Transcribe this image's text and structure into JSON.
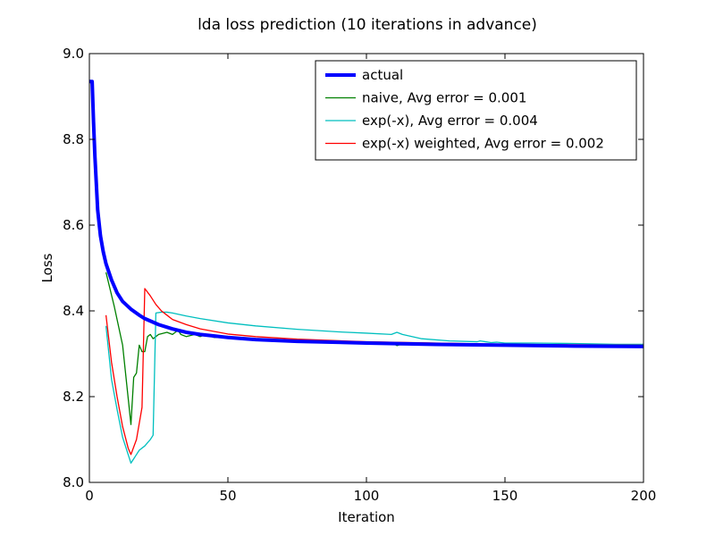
{
  "chart_data": {
    "type": "line",
    "title": "lda loss prediction (10 iterations in advance)",
    "xlabel": "Iteration",
    "ylabel": "Loss",
    "xlim": [
      0,
      200
    ],
    "ylim": [
      8.0,
      9.0
    ],
    "xticks": [
      0,
      50,
      100,
      150,
      200
    ],
    "yticks": [
      8.0,
      8.2,
      8.4,
      8.6,
      8.8,
      9.0
    ],
    "ytick_labels": [
      "8.0",
      "8.2",
      "8.4",
      "8.6",
      "8.8",
      "9.0"
    ],
    "grid": false,
    "legend_position": "top-right",
    "series": [
      {
        "name": "actual",
        "color": "#0000ff",
        "points": [
          [
            0,
            8.935
          ],
          [
            1,
            8.935
          ],
          [
            1.5,
            8.84
          ],
          [
            2,
            8.76
          ],
          [
            3,
            8.635
          ],
          [
            4,
            8.575
          ],
          [
            5,
            8.538
          ],
          [
            6,
            8.51
          ],
          [
            8,
            8.472
          ],
          [
            10,
            8.442
          ],
          [
            12,
            8.422
          ],
          [
            15,
            8.404
          ],
          [
            18,
            8.39
          ],
          [
            20,
            8.382
          ],
          [
            25,
            8.368
          ],
          [
            30,
            8.358
          ],
          [
            35,
            8.35
          ],
          [
            40,
            8.345
          ],
          [
            50,
            8.338
          ],
          [
            60,
            8.333
          ],
          [
            75,
            8.329
          ],
          [
            100,
            8.325
          ],
          [
            125,
            8.322
          ],
          [
            150,
            8.32
          ],
          [
            175,
            8.318
          ],
          [
            200,
            8.317
          ]
        ]
      },
      {
        "name": "naive, Avg error = 0.001",
        "color": "#008000",
        "points": [
          [
            6,
            8.49
          ],
          [
            9,
            8.41
          ],
          [
            12,
            8.32
          ],
          [
            15,
            8.135
          ],
          [
            16,
            8.245
          ],
          [
            17,
            8.255
          ],
          [
            18,
            8.32
          ],
          [
            19,
            8.305
          ],
          [
            20,
            8.305
          ],
          [
            21,
            8.34
          ],
          [
            22,
            8.345
          ],
          [
            23,
            8.335
          ],
          [
            25,
            8.345
          ],
          [
            28,
            8.35
          ],
          [
            30,
            8.345
          ],
          [
            32,
            8.355
          ],
          [
            33,
            8.345
          ],
          [
            35,
            8.34
          ],
          [
            38,
            8.345
          ],
          [
            40,
            8.34
          ],
          [
            42,
            8.345
          ],
          [
            45,
            8.338
          ],
          [
            50,
            8.338
          ],
          [
            60,
            8.333
          ],
          [
            75,
            8.329
          ],
          [
            100,
            8.325
          ],
          [
            110,
            8.323
          ],
          [
            111,
            8.319
          ],
          [
            112,
            8.321
          ],
          [
            125,
            8.322
          ],
          [
            150,
            8.32
          ],
          [
            175,
            8.318
          ],
          [
            200,
            8.317
          ]
        ]
      },
      {
        "name": "exp(-x), Avg error = 0.004",
        "color": "#00bfbf",
        "points": [
          [
            6,
            8.365
          ],
          [
            8,
            8.24
          ],
          [
            10,
            8.17
          ],
          [
            12,
            8.105
          ],
          [
            14,
            8.065
          ],
          [
            15,
            8.045
          ],
          [
            16,
            8.055
          ],
          [
            17,
            8.065
          ],
          [
            18,
            8.075
          ],
          [
            20,
            8.085
          ],
          [
            22,
            8.1
          ],
          [
            23,
            8.11
          ],
          [
            24,
            8.395
          ],
          [
            26,
            8.397
          ],
          [
            28,
            8.397
          ],
          [
            30,
            8.395
          ],
          [
            35,
            8.388
          ],
          [
            40,
            8.382
          ],
          [
            50,
            8.372
          ],
          [
            60,
            8.365
          ],
          [
            75,
            8.357
          ],
          [
            90,
            8.351
          ],
          [
            100,
            8.348
          ],
          [
            109,
            8.345
          ],
          [
            111,
            8.35
          ],
          [
            113,
            8.345
          ],
          [
            120,
            8.335
          ],
          [
            130,
            8.33
          ],
          [
            140,
            8.328
          ],
          [
            141,
            8.33
          ],
          [
            143,
            8.328
          ],
          [
            145,
            8.326
          ],
          [
            147,
            8.327
          ],
          [
            150,
            8.325
          ],
          [
            160,
            8.325
          ],
          [
            175,
            8.324
          ],
          [
            190,
            8.322
          ],
          [
            200,
            8.322
          ]
        ]
      },
      {
        "name": "exp(-x) weighted, Avg error = 0.002",
        "color": "#ff0000",
        "points": [
          [
            6,
            8.39
          ],
          [
            8,
            8.28
          ],
          [
            10,
            8.2
          ],
          [
            12,
            8.13
          ],
          [
            14,
            8.08
          ],
          [
            15,
            8.065
          ],
          [
            17,
            8.1
          ],
          [
            19,
            8.175
          ],
          [
            20,
            8.452
          ],
          [
            22,
            8.435
          ],
          [
            24,
            8.415
          ],
          [
            26,
            8.4
          ],
          [
            28,
            8.39
          ],
          [
            30,
            8.38
          ],
          [
            35,
            8.368
          ],
          [
            40,
            8.358
          ],
          [
            50,
            8.346
          ],
          [
            60,
            8.34
          ],
          [
            75,
            8.334
          ],
          [
            100,
            8.328
          ],
          [
            125,
            8.325
          ],
          [
            150,
            8.322
          ],
          [
            175,
            8.321
          ],
          [
            200,
            8.32
          ]
        ]
      }
    ]
  }
}
